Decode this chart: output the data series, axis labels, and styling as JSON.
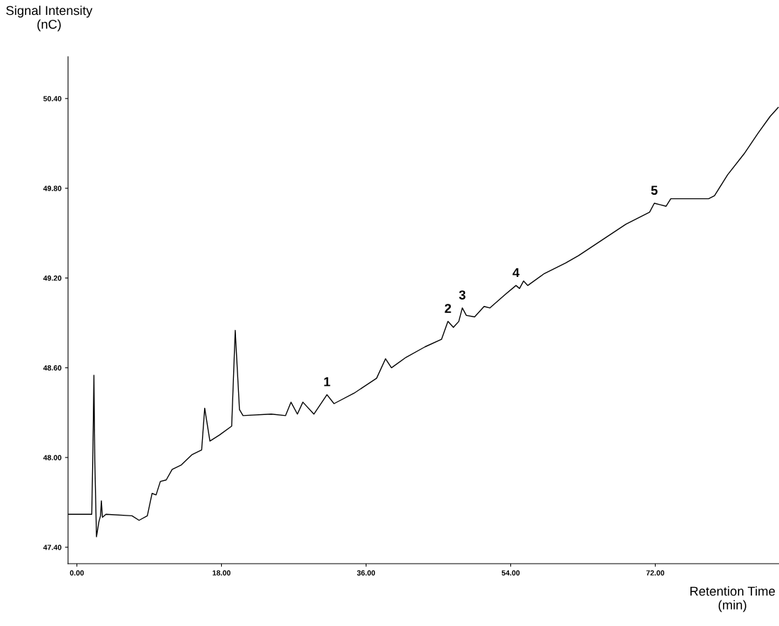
{
  "chart_data": {
    "type": "line",
    "xlabel": "Retention Time\n(min)",
    "ylabel": "Signal Intensity\n(nC)",
    "xlim": [
      -1.1,
      87.4
    ],
    "ylim": [
      47.29,
      50.68
    ],
    "xticks": [
      {
        "value": 0,
        "label": "0.00"
      },
      {
        "value": 18,
        "label": "18.00"
      },
      {
        "value": 36,
        "label": "36.00"
      },
      {
        "value": 54,
        "label": "54.00"
      },
      {
        "value": 72,
        "label": "72.00"
      }
    ],
    "yticks": [
      {
        "value": 47.4,
        "label": "47.40"
      },
      {
        "value": 48.0,
        "label": "48.00"
      },
      {
        "value": 48.6,
        "label": "48.60"
      },
      {
        "value": 49.2,
        "label": "49.20"
      },
      {
        "value": 49.8,
        "label": "49.80"
      },
      {
        "value": 50.4,
        "label": "50.40"
      }
    ],
    "grid": false,
    "legend": false,
    "marker": "none",
    "line_style": "solid",
    "series": [
      {
        "color": "#000000",
        "x": [
          -1.1,
          1.85,
          2.0,
          2.12,
          2.23,
          2.44,
          2.74,
          2.94,
          3.05,
          3.18,
          3.62,
          6.86,
          7.74,
          8.77,
          9.36,
          9.86,
          10.39,
          11.12,
          11.86,
          13.0,
          14.36,
          15.53,
          15.91,
          16.56,
          17.74,
          19.27,
          19.71,
          20.24,
          20.68,
          24.2,
          25.97,
          26.65,
          27.45,
          28.13,
          29.5,
          31.13,
          32.01,
          34.51,
          37.31,
          38.42,
          39.16,
          40.98,
          43.34,
          45.39,
          46.19,
          46.87,
          47.54,
          47.98,
          48.48,
          49.51,
          50.69,
          51.42,
          53.33,
          54.66,
          55.1,
          55.6,
          56.13,
          58.19,
          60.84,
          62.46,
          68.34,
          71.29,
          71.88,
          72.61,
          73.35,
          73.93,
          77.17,
          78.64,
          79.37,
          81.0,
          83.05,
          84.82,
          86.29,
          87.3
        ],
        "values": [
          47.62,
          47.62,
          48.06,
          48.55,
          47.98,
          47.47,
          47.57,
          47.61,
          47.71,
          47.6,
          47.62,
          47.61,
          47.58,
          47.61,
          47.76,
          47.75,
          47.84,
          47.85,
          47.92,
          47.95,
          48.02,
          48.05,
          48.33,
          48.11,
          48.15,
          48.21,
          48.85,
          48.32,
          48.28,
          48.29,
          48.28,
          48.37,
          48.29,
          48.37,
          48.29,
          48.42,
          48.36,
          48.43,
          48.53,
          48.66,
          48.6,
          48.67,
          48.74,
          48.79,
          48.91,
          48.87,
          48.91,
          49.0,
          48.95,
          48.94,
          49.01,
          49.0,
          49.09,
          49.15,
          49.13,
          49.18,
          49.15,
          49.23,
          49.3,
          49.35,
          49.56,
          49.64,
          49.7,
          49.69,
          49.68,
          49.73,
          49.73,
          49.73,
          49.75,
          49.89,
          50.03,
          50.17,
          50.28,
          50.34
        ]
      }
    ],
    "annotations": [
      {
        "text": "1",
        "x": 31.13,
        "y": 48.42
      },
      {
        "text": "2",
        "x": 46.19,
        "y": 48.91
      },
      {
        "text": "3",
        "x": 47.98,
        "y": 49.0
      },
      {
        "text": "4",
        "x": 54.66,
        "y": 49.15
      },
      {
        "text": "5",
        "x": 71.88,
        "y": 49.7
      }
    ]
  }
}
